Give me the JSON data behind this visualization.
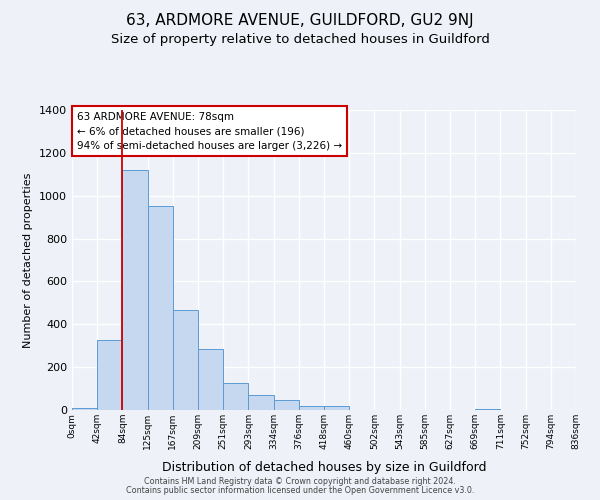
{
  "title1": "63, ARDMORE AVENUE, GUILDFORD, GU2 9NJ",
  "title2": "Size of property relative to detached houses in Guildford",
  "xlabel": "Distribution of detached houses by size in Guildford",
  "ylabel": "Number of detached properties",
  "tick_labels": [
    "0sqm",
    "42sqm",
    "84sqm",
    "125sqm",
    "167sqm",
    "209sqm",
    "251sqm",
    "293sqm",
    "334sqm",
    "376sqm",
    "418sqm",
    "460sqm",
    "502sqm",
    "543sqm",
    "585sqm",
    "627sqm",
    "669sqm",
    "711sqm",
    "752sqm",
    "794sqm",
    "836sqm"
  ],
  "bar_heights": [
    10,
    325,
    1120,
    950,
    465,
    285,
    125,
    70,
    45,
    20,
    20,
    0,
    0,
    0,
    0,
    0,
    5,
    0,
    0,
    0
  ],
  "bar_color": "#c5d8f0",
  "bar_edge_color": "#5b9bd5",
  "vline_color": "#cc0000",
  "ylim": [
    0,
    1400
  ],
  "yticks": [
    0,
    200,
    400,
    600,
    800,
    1000,
    1200,
    1400
  ],
  "annotation_line1": "63 ARDMORE AVENUE: 78sqm",
  "annotation_line2": "← 6% of detached houses are smaller (196)",
  "annotation_line3": "94% of semi-detached houses are larger (3,226) →",
  "footer1": "Contains HM Land Registry data © Crown copyright and database right 2024.",
  "footer2": "Contains public sector information licensed under the Open Government Licence v3.0.",
  "bg_color": "#eef2f8",
  "grid_color": "#ffffff",
  "title_fontsize": 11,
  "subtitle_fontsize": 9.5,
  "ylabel_fontsize": 8,
  "xlabel_fontsize": 9
}
